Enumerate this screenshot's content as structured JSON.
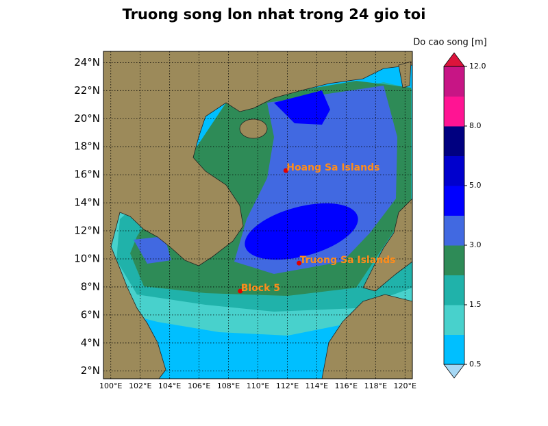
{
  "chart_data": {
    "type": "map",
    "title": "Truong song lon nhat trong 24 gio toi",
    "xlim": [
      99.5,
      120.5
    ],
    "ylim": [
      1.45,
      24.8
    ],
    "xticks": [
      {
        "value": 100,
        "label": "100°E"
      },
      {
        "value": 102,
        "label": "102°E"
      },
      {
        "value": 104,
        "label": "104°E"
      },
      {
        "value": 106,
        "label": "106°E"
      },
      {
        "value": 108,
        "label": "108°E"
      },
      {
        "value": 110,
        "label": "110°E"
      },
      {
        "value": 112,
        "label": "112°E"
      },
      {
        "value": 114,
        "label": "114°E"
      },
      {
        "value": 116,
        "label": "116°E"
      },
      {
        "value": 118,
        "label": "118°E"
      },
      {
        "value": 120,
        "label": "120°E"
      }
    ],
    "yticks": [
      {
        "value": 2,
        "label": "2°N"
      },
      {
        "value": 4,
        "label": "4°N"
      },
      {
        "value": 6,
        "label": "6°N"
      },
      {
        "value": 8,
        "label": "8°N"
      },
      {
        "value": 10,
        "label": "10°N"
      },
      {
        "value": 12,
        "label": "12°N"
      },
      {
        "value": 14,
        "label": "14°N"
      },
      {
        "value": 16,
        "label": "16°N"
      },
      {
        "value": 18,
        "label": "18°N"
      },
      {
        "value": 20,
        "label": "20°N"
      },
      {
        "value": 22,
        "label": "22°N"
      },
      {
        "value": 24,
        "label": "24°N"
      }
    ],
    "grid": true,
    "places": [
      {
        "name": "Hoang Sa Islands",
        "lon": 111.9,
        "lat": 16.3
      },
      {
        "name": "Truong Sa Islands",
        "lon": 112.8,
        "lat": 9.7
      },
      {
        "name": "Block 5",
        "lon": 108.8,
        "lat": 7.7
      }
    ],
    "colorbar": {
      "label": "Do cao song [m]",
      "levels": [
        0.5,
        1.0,
        1.5,
        2.0,
        3.0,
        4.0,
        5.0,
        6.0,
        8.0,
        10.0,
        12.0
      ],
      "colors": [
        "#00bfff",
        "#48d1cc",
        "#20b2aa",
        "#2e8b57",
        "#4169e1",
        "#0000ff",
        "#0000cd",
        "#000080",
        "#ff1493",
        "#c71585"
      ],
      "under_color": "#a6d8f5",
      "over_color": "#dc143c",
      "ticks": [
        {
          "value": 0.5,
          "label": "0.5"
        },
        {
          "value": 1.5,
          "label": "1.5"
        },
        {
          "value": 3.0,
          "label": "3.0"
        },
        {
          "value": 5.0,
          "label": "5.0"
        },
        {
          "value": 8.0,
          "label": "8.0"
        },
        {
          "value": 12.0,
          "label": "12.0"
        }
      ]
    }
  }
}
